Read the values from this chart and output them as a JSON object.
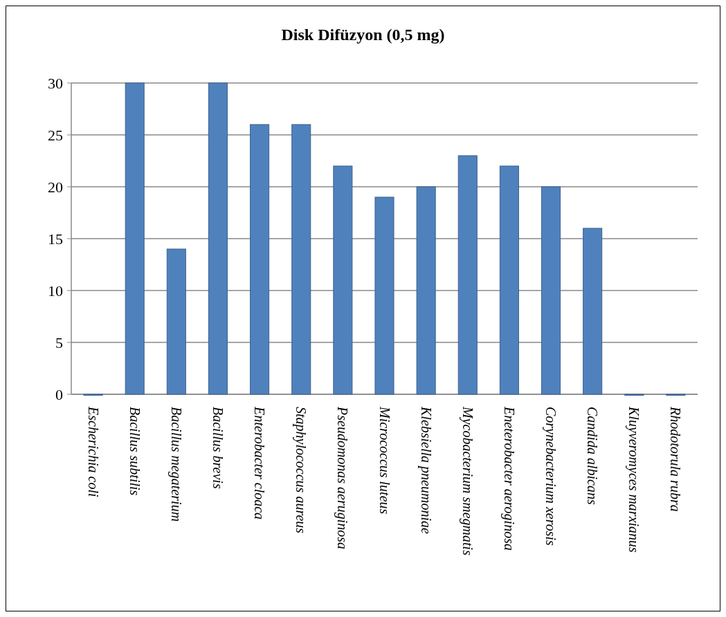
{
  "chart_data": {
    "type": "bar",
    "title": "Disk Difüzyon (0,5 mg)",
    "categories": [
      "Escherichia coli",
      "Bacillus subtilis",
      "Bacillus megaterium",
      "Bacillus brevis",
      "Enterobacter cloaca",
      "Staphylococcus aureus",
      "Pseudomonas aeruginosa",
      "Micrococcus luteus",
      "Klebsiella pneumoniae",
      "Mycobacterium smegmatis",
      "Eneterobacter aeroginosa",
      "Corynebacterium xerosis",
      "Candida albicans",
      "Kluyveromyces marxianus",
      "Rhodotorula rubra"
    ],
    "values": [
      0,
      30,
      14,
      30,
      26,
      26,
      22,
      19,
      20,
      23,
      22,
      20,
      16,
      0,
      0
    ],
    "color": "#4f81bd",
    "ylim": [
      0,
      30
    ],
    "yticks": [
      0,
      5,
      10,
      15,
      20,
      25,
      30
    ],
    "grid": "y"
  }
}
